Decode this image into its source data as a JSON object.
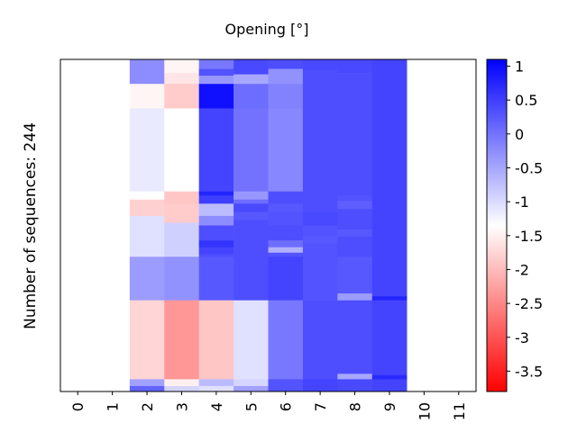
{
  "chart_data": {
    "type": "heatmap",
    "title": "Opening [°]",
    "xlabel": "",
    "ylabel": "Number of sequences: 244",
    "x_categories": [
      "0",
      "1",
      "2",
      "3",
      "4",
      "5",
      "6",
      "7",
      "8",
      "9",
      "10",
      "11"
    ],
    "rows": 244,
    "colorbar": {
      "min": -3.8,
      "max": 1.1,
      "ticks": [
        1,
        0.5,
        0,
        -0.5,
        -1,
        -1.5,
        -2,
        -2.5,
        -3,
        -3.5
      ],
      "tick_labels": [
        "1",
        "0.5",
        "0",
        "-0.5",
        "-1",
        "-1.5",
        "-2",
        "-2.5",
        "-3",
        "-3.5"
      ],
      "colors": [
        "#ff0000",
        "#ffffff",
        "#0000ff"
      ],
      "center": -1.35
    },
    "columns": [
      {
        "x": "0",
        "segments": []
      },
      {
        "x": "1",
        "segments": []
      },
      {
        "x": "2",
        "segments": [
          [
            0,
            18,
            -0.25
          ],
          [
            18,
            36,
            -1.45
          ],
          [
            36,
            97,
            -1.15
          ],
          [
            97,
            103,
            -1.35
          ],
          [
            103,
            115,
            -1.8
          ],
          [
            115,
            145,
            -1.05
          ],
          [
            145,
            177,
            -0.4
          ],
          [
            177,
            235,
            -1.75
          ],
          [
            235,
            240,
            -0.45
          ],
          [
            240,
            244,
            0.15
          ]
        ]
      },
      {
        "x": "3",
        "segments": [
          [
            0,
            10,
            -1.45
          ],
          [
            10,
            18,
            -1.6
          ],
          [
            18,
            36,
            -1.85
          ],
          [
            36,
            97,
            -1.35
          ],
          [
            97,
            106,
            -1.9
          ],
          [
            106,
            120,
            -1.85
          ],
          [
            120,
            145,
            -0.9
          ],
          [
            145,
            177,
            -0.3
          ],
          [
            177,
            235,
            -2.35
          ],
          [
            235,
            240,
            -1.5
          ],
          [
            240,
            244,
            -0.95
          ]
        ]
      },
      {
        "x": "4",
        "segments": [
          [
            0,
            7,
            -0.05
          ],
          [
            7,
            12,
            0.3
          ],
          [
            12,
            18,
            -0.35
          ],
          [
            18,
            36,
            0.95
          ],
          [
            36,
            97,
            0.45
          ],
          [
            97,
            100,
            0.75
          ],
          [
            100,
            106,
            0.5
          ],
          [
            106,
            115,
            -0.7
          ],
          [
            115,
            122,
            -0.25
          ],
          [
            122,
            133,
            0.35
          ],
          [
            133,
            138,
            0.6
          ],
          [
            138,
            143,
            0.45
          ],
          [
            143,
            145,
            0.35
          ],
          [
            145,
            177,
            0.25
          ],
          [
            177,
            235,
            -1.9
          ],
          [
            235,
            240,
            -0.7
          ],
          [
            240,
            244,
            -1.05
          ]
        ]
      },
      {
        "x": "5",
        "segments": [
          [
            0,
            11,
            0.4
          ],
          [
            11,
            18,
            -0.5
          ],
          [
            18,
            36,
            0.05
          ],
          [
            36,
            97,
            0.0
          ],
          [
            97,
            103,
            -0.35
          ],
          [
            103,
            106,
            0.05
          ],
          [
            106,
            112,
            0.4
          ],
          [
            112,
            118,
            0.25
          ],
          [
            118,
            145,
            0.35
          ],
          [
            145,
            177,
            0.35
          ],
          [
            177,
            235,
            -1.05
          ],
          [
            235,
            240,
            -0.95
          ],
          [
            240,
            244,
            -0.45
          ]
        ]
      },
      {
        "x": "6",
        "segments": [
          [
            0,
            7,
            0.35
          ],
          [
            7,
            18,
            -0.3
          ],
          [
            18,
            36,
            -0.15
          ],
          [
            36,
            97,
            -0.2
          ],
          [
            97,
            106,
            0.35
          ],
          [
            106,
            112,
            0.25
          ],
          [
            112,
            122,
            0.3
          ],
          [
            122,
            133,
            0.35
          ],
          [
            133,
            138,
            0.05
          ],
          [
            138,
            142,
            -0.6
          ],
          [
            142,
            145,
            0.3
          ],
          [
            145,
            177,
            0.45
          ],
          [
            177,
            235,
            -0.05
          ],
          [
            235,
            244,
            0.3
          ]
        ]
      },
      {
        "x": "7",
        "segments": [
          [
            0,
            8,
            0.4
          ],
          [
            8,
            97,
            0.35
          ],
          [
            97,
            112,
            0.35
          ],
          [
            112,
            122,
            0.4
          ],
          [
            122,
            130,
            0.3
          ],
          [
            130,
            135,
            0.25
          ],
          [
            135,
            145,
            0.3
          ],
          [
            145,
            177,
            0.3
          ],
          [
            177,
            235,
            0.35
          ],
          [
            235,
            244,
            0.45
          ]
        ]
      },
      {
        "x": "8",
        "segments": [
          [
            0,
            10,
            0.4
          ],
          [
            10,
            100,
            0.35
          ],
          [
            100,
            104,
            0.3
          ],
          [
            104,
            110,
            0.2
          ],
          [
            110,
            125,
            0.35
          ],
          [
            125,
            130,
            0.25
          ],
          [
            130,
            145,
            0.35
          ],
          [
            145,
            172,
            0.25
          ],
          [
            172,
            177,
            -0.4
          ],
          [
            177,
            231,
            0.35
          ],
          [
            231,
            235,
            -0.5
          ],
          [
            235,
            244,
            0.4
          ]
        ]
      },
      {
        "x": "9",
        "segments": [
          [
            0,
            174,
            0.45
          ],
          [
            174,
            177,
            0.75
          ],
          [
            177,
            232,
            0.45
          ],
          [
            232,
            235,
            0.7
          ],
          [
            235,
            244,
            0.45
          ]
        ]
      },
      {
        "x": "10",
        "segments": []
      },
      {
        "x": "11",
        "segments": []
      }
    ]
  }
}
